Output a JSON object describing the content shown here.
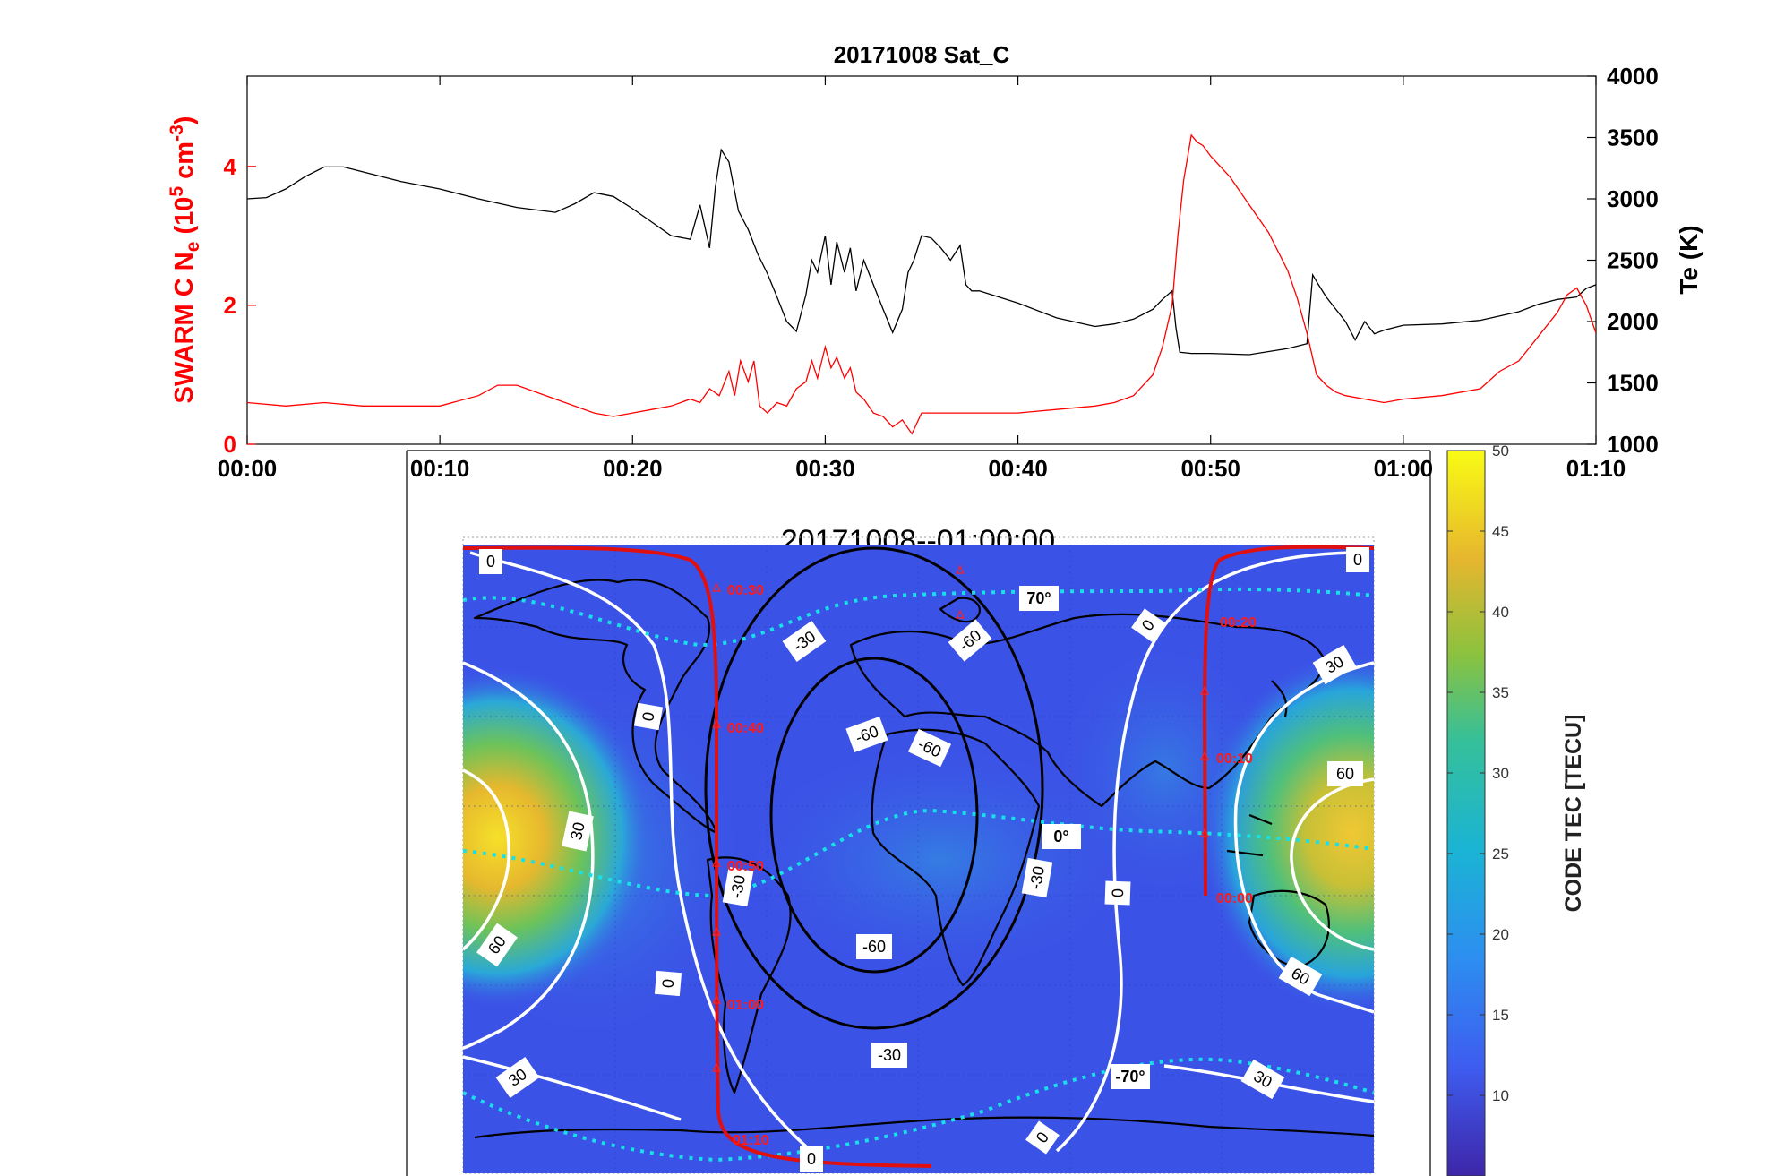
{
  "colors": {
    "ne_line": "#ff0000",
    "te_line": "#000000",
    "track": "#e01010",
    "mlat": "#18e0e8",
    "contour_pos": "#ffffff",
    "contour_neg": "#000000"
  },
  "chart_data": [
    {
      "type": "line",
      "title": "20171008  Sat_C",
      "ylabel_left": {
        "prefix": "SWARM C  N",
        "sub": "e",
        "mid": " (10",
        "sup1": "5",
        "unit": " cm",
        "sup2": "-3",
        "close": ")"
      },
      "ylabel_right": "Te (K)",
      "x_unit": "minutes",
      "xlim": [
        0,
        70
      ],
      "x_ticks": [
        0,
        10,
        20,
        30,
        40,
        50,
        60,
        70
      ],
      "x_tick_labels": [
        "00:00",
        "00:10",
        "00:20",
        "00:30",
        "00:40",
        "00:50",
        "01:00",
        "01:10"
      ],
      "ylim_left": [
        0,
        5.3
      ],
      "y_ticks_left": [
        0,
        2,
        4
      ],
      "y_tick_labels_left": [
        "0",
        "2",
        "4"
      ],
      "ylim_right": [
        1000,
        4000
      ],
      "y_ticks_right": [
        1000,
        1500,
        2000,
        2500,
        3000,
        3500,
        4000
      ],
      "y_tick_labels_right": [
        "1000",
        "1500",
        "2000",
        "2500",
        "3000",
        "3500",
        "4000"
      ],
      "series": [
        {
          "name": "Ne",
          "axis": "left",
          "x": [
            0,
            2,
            4,
            6,
            8,
            10,
            12,
            13,
            14,
            16,
            18,
            19,
            20,
            21,
            22,
            23,
            23.5,
            24,
            24.5,
            25,
            25.3,
            25.6,
            26,
            26.3,
            26.6,
            27,
            27.5,
            28,
            28.5,
            29,
            29.3,
            29.6,
            30,
            30.3,
            30.6,
            31,
            31.3,
            31.6,
            32,
            32.5,
            33,
            33.5,
            34,
            34.5,
            35,
            36,
            38,
            40,
            42,
            44,
            45,
            46,
            47,
            47.5,
            48,
            48.3,
            48.6,
            49,
            49.3,
            49.6,
            50,
            51,
            52,
            53,
            54,
            54.5,
            55,
            55.5,
            56,
            56.5,
            57,
            58,
            59,
            60,
            62,
            64,
            65,
            66,
            67,
            68,
            68.5,
            69,
            69.5,
            70
          ],
          "values": [
            0.6,
            0.55,
            0.6,
            0.55,
            0.55,
            0.55,
            0.7,
            0.85,
            0.85,
            0.65,
            0.45,
            0.4,
            0.45,
            0.5,
            0.55,
            0.65,
            0.6,
            0.8,
            0.7,
            1.05,
            0.7,
            1.2,
            0.9,
            1.2,
            0.55,
            0.45,
            0.6,
            0.55,
            0.8,
            0.9,
            1.2,
            0.95,
            1.4,
            1.1,
            1.25,
            0.95,
            1.1,
            0.75,
            0.65,
            0.45,
            0.4,
            0.25,
            0.35,
            0.15,
            0.45,
            0.45,
            0.45,
            0.45,
            0.5,
            0.55,
            0.6,
            0.7,
            1.0,
            1.4,
            2.0,
            3.0,
            3.8,
            4.45,
            4.35,
            4.3,
            4.15,
            3.85,
            3.45,
            3.05,
            2.5,
            2.1,
            1.6,
            1.0,
            0.85,
            0.75,
            0.7,
            0.65,
            0.6,
            0.65,
            0.7,
            0.8,
            1.05,
            1.2,
            1.55,
            1.9,
            2.15,
            2.25,
            2.0,
            1.6
          ]
        },
        {
          "name": "Te",
          "axis": "right",
          "x": [
            0,
            1,
            2,
            3,
            4,
            5,
            6,
            8,
            10,
            12,
            14,
            16,
            17,
            18,
            19,
            20,
            21,
            22,
            23,
            23.5,
            24,
            24.3,
            24.6,
            25,
            25.5,
            26,
            26.5,
            27,
            27.5,
            28,
            28.5,
            29,
            29.3,
            29.6,
            30,
            30.3,
            30.6,
            31,
            31.3,
            31.6,
            32,
            32.5,
            33,
            33.5,
            34,
            34.3,
            34.6,
            35,
            35.5,
            36,
            36.5,
            37,
            37.3,
            37.6,
            38,
            40,
            42,
            44,
            45,
            46,
            47,
            47.5,
            48,
            48.2,
            48.4,
            49,
            50,
            52,
            54,
            55,
            55.3,
            55.6,
            56,
            57,
            57.5,
            58,
            58.5,
            59,
            60,
            62,
            64,
            66,
            67,
            68,
            69,
            69.5,
            70
          ],
          "values": [
            3000,
            3010,
            3080,
            3180,
            3260,
            3260,
            3220,
            3140,
            3080,
            3000,
            2930,
            2890,
            2960,
            3050,
            3020,
            2920,
            2810,
            2700,
            2670,
            2950,
            2600,
            3100,
            3400,
            3300,
            2900,
            2750,
            2550,
            2390,
            2200,
            2000,
            1920,
            2220,
            2500,
            2400,
            2700,
            2300,
            2650,
            2400,
            2600,
            2250,
            2500,
            2300,
            2100,
            1910,
            2100,
            2400,
            2500,
            2700,
            2680,
            2600,
            2500,
            2620,
            2300,
            2250,
            2250,
            2150,
            2030,
            1960,
            1980,
            2020,
            2100,
            2180,
            2250,
            1950,
            1750,
            1740,
            1740,
            1730,
            1780,
            1820,
            2380,
            2300,
            2200,
            2000,
            1850,
            2000,
            1900,
            1930,
            1970,
            1980,
            2010,
            2080,
            2140,
            2180,
            2200,
            2270,
            2300
          ]
        }
      ]
    },
    {
      "type": "heatmap",
      "title": "20171008--01:00:00",
      "colorbar_label": "CODE TEC [TECU]",
      "colorbar_range": [
        5,
        50
      ],
      "colorbar_ticks": [
        50,
        45,
        40,
        35,
        30,
        25,
        20,
        15,
        10
      ],
      "colorbar_tick_labels": [
        "50",
        "45",
        "40",
        "35",
        "30",
        "25",
        "20",
        "15",
        "10"
      ],
      "magnetic_latitude_labels": [
        "70°",
        "0°",
        "-70°"
      ],
      "contour_labels": [
        "0",
        "0",
        "0",
        "0",
        "0",
        "0",
        "0",
        "0",
        "30",
        "30",
        "30",
        "30",
        "60",
        "60",
        "60",
        "-30",
        "-30",
        "-30",
        "-30",
        "-60",
        "-60",
        "-60",
        "-60"
      ],
      "track_time_labels": [
        "00:00",
        "00:10",
        "00:20",
        "00:30",
        "00:40",
        "00:50",
        "01:00",
        "01:10"
      ]
    }
  ]
}
